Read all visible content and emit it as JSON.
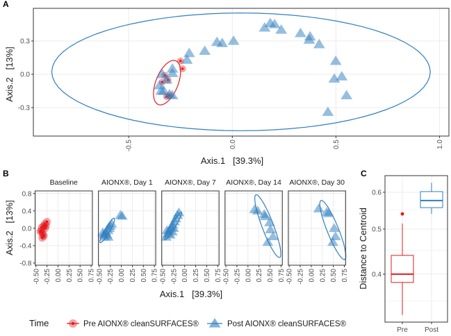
{
  "colors": {
    "pre": "#E41A1C",
    "post": "#2E7EBF",
    "grid": "#EBEBEB",
    "frame": "#333333"
  },
  "legend": {
    "title": "Time",
    "pre_label": "Pre AIONX® cleanSURFACES®",
    "post_label": "Post AIONX® cleanSURFACES®"
  },
  "chart_data": [
    {
      "panel": "A",
      "type": "scatter",
      "xlabel": "Axis.1   [39.3%]",
      "ylabel": "Axis.2   [13%]",
      "xlim": [
        -0.96,
        1.045
      ],
      "ylim": [
        -0.556,
        0.594
      ],
      "xticks": [
        -0.5,
        0.0,
        0.5,
        1.0
      ],
      "xtick_labels": [
        "-0.5",
        "0.0",
        "0.5",
        "1.0"
      ],
      "yticks": [
        -0.3,
        0.0,
        0.3
      ],
      "ytick_labels": [
        "-0.3",
        "0.0",
        "0.3"
      ],
      "series": [
        {
          "name": "Pre AIONX® cleanSURFACES®",
          "marker": "circle",
          "points": [
            [
              -0.25,
              0.12
            ],
            [
              -0.24,
              0.05
            ],
            [
              -0.326,
              -0.01
            ],
            [
              -0.31,
              -0.05
            ],
            [
              -0.338,
              -0.07
            ],
            [
              -0.303,
              -0.19
            ],
            [
              -0.317,
              -0.2
            ]
          ],
          "ellipse": {
            "center": [
              -0.315,
              -0.075
            ],
            "axis1": [
              0.035,
              0.2
            ],
            "axis2": [
              0.055,
              -0.01
            ]
          }
        },
        {
          "name": "Post AIONX® cleanSURFACES®",
          "marker": "triangle",
          "points": [
            [
              0.156,
              0.42
            ],
            [
              0.183,
              0.46
            ],
            [
              0.204,
              0.45
            ],
            [
              0.236,
              0.4
            ],
            [
              0.329,
              0.37
            ],
            [
              0.375,
              0.34
            ],
            [
              0.371,
              0.31
            ],
            [
              0.419,
              0.27
            ],
            [
              0.499,
              0.12
            ],
            [
              0.528,
              -0.02
            ],
            [
              0.492,
              -0.04
            ],
            [
              0.551,
              -0.19
            ],
            [
              0.461,
              -0.34
            ],
            [
              0.006,
              0.3
            ],
            [
              -0.049,
              0.28
            ],
            [
              -0.074,
              0.29
            ],
            [
              -0.133,
              0.21
            ],
            [
              -0.208,
              0.19
            ],
            [
              -0.219,
              0.13
            ],
            [
              -0.289,
              0.05
            ],
            [
              -0.289,
              0.01
            ],
            [
              -0.338,
              0.0
            ],
            [
              -0.317,
              -0.05
            ],
            [
              -0.351,
              -0.1
            ],
            [
              -0.331,
              -0.15
            ],
            [
              -0.303,
              -0.18
            ],
            [
              -0.289,
              -0.19
            ],
            [
              -0.344,
              -0.15
            ]
          ],
          "ellipse": {
            "center": [
              0.042,
              0.022
            ],
            "axis1": [
              0.913,
              0
            ],
            "axis2": [
              0,
              0.53
            ]
          }
        }
      ]
    },
    {
      "panel": "B",
      "type": "scatter",
      "xlabel": "Axis.1   [39.3%]",
      "ylabel": "Axis.2   [13%]",
      "xlim": [
        -0.52,
        0.78
      ],
      "ylim": [
        -0.85,
        0.86
      ],
      "xticks": [
        -0.5,
        -0.25,
        0,
        0.25,
        0.5,
        0.75
      ],
      "xtick_labels": [
        "-0.50",
        "-0.25",
        "0.00",
        "0.25",
        "0.50",
        "0.75"
      ],
      "yticks": [
        -0.8,
        -0.4,
        0,
        0.4,
        0.8
      ],
      "ytick_labels": [
        "-0.8",
        "-0.4",
        "0.0",
        "0.4",
        "0.8"
      ],
      "facets": [
        {
          "label": "Baseline",
          "group": "pre",
          "points": [
            [
              -0.3,
              0.1
            ],
            [
              -0.25,
              0.15
            ],
            [
              -0.33,
              0.05
            ],
            [
              -0.38,
              -0.05
            ],
            [
              -0.35,
              -0.1
            ],
            [
              -0.32,
              -0.18
            ],
            [
              -0.36,
              -0.22
            ],
            [
              -0.4,
              -0.08
            ],
            [
              -0.29,
              0.0
            ],
            [
              -0.34,
              -0.15
            ],
            [
              -0.27,
              0.06
            ],
            [
              -0.37,
              0.02
            ]
          ],
          "ellipse": null
        },
        {
          "label": "AIONX®, Day 1",
          "group": "post",
          "points": [
            [
              -0.4,
              -0.15
            ],
            [
              -0.35,
              -0.1
            ],
            [
              -0.3,
              -0.05
            ],
            [
              -0.27,
              0.0
            ],
            [
              -0.25,
              0.05
            ],
            [
              -0.22,
              0.1
            ],
            [
              -0.38,
              -0.2
            ],
            [
              -0.33,
              -0.15
            ],
            [
              -0.3,
              -0.2
            ],
            [
              -0.42,
              -0.1
            ],
            [
              -0.02,
              0.3
            ],
            [
              0.02,
              0.28
            ]
          ],
          "ellipse": {
            "center": [
              -0.32,
              -0.05
            ],
            "axis1": [
              0.16,
              0.28
            ],
            "axis2": [
              0.05,
              -0.03
            ]
          }
        },
        {
          "label": "AIONX®, Day 7",
          "group": "post",
          "points": [
            [
              -0.42,
              -0.2
            ],
            [
              -0.38,
              -0.12
            ],
            [
              -0.35,
              -0.05
            ],
            [
              -0.3,
              0.02
            ],
            [
              -0.27,
              0.08
            ],
            [
              -0.23,
              0.15
            ],
            [
              -0.2,
              0.22
            ],
            [
              -0.16,
              0.3
            ],
            [
              -0.13,
              0.36
            ],
            [
              -0.4,
              -0.05
            ],
            [
              -0.33,
              -0.15
            ],
            [
              -0.28,
              -0.08
            ],
            [
              -0.25,
              0.0
            ]
          ],
          "ellipse": {
            "center": [
              -0.26,
              0.05
            ],
            "axis1": [
              0.19,
              0.32
            ],
            "axis2": [
              0.04,
              -0.03
            ]
          }
        },
        {
          "label": "AIONX®, Day 14",
          "group": "post",
          "points": [
            [
              0.15,
              0.43
            ],
            [
              0.22,
              0.4
            ],
            [
              0.37,
              0.32
            ],
            [
              0.39,
              0.27
            ],
            [
              0.49,
              0.13
            ],
            [
              0.51,
              -0.03
            ],
            [
              0.57,
              -0.19
            ],
            [
              0.45,
              -0.32
            ]
          ],
          "ellipse": {
            "center": [
              0.45,
              0.05
            ],
            "axis1": [
              -0.27,
              0.72
            ],
            "axis2": [
              0.12,
              0.05
            ]
          }
        },
        {
          "label": "AIONX®, Day 30",
          "group": "post",
          "points": [
            [
              0.17,
              0.45
            ],
            [
              0.35,
              0.37
            ],
            [
              0.39,
              0.34
            ],
            [
              0.52,
              0.0
            ],
            [
              0.55,
              -0.19
            ],
            [
              0.49,
              -0.32
            ]
          ],
          "ellipse": {
            "center": [
              0.49,
              -0.04
            ],
            "axis1": [
              -0.27,
              0.68
            ],
            "axis2": [
              0.12,
              0.05
            ]
          }
        }
      ]
    },
    {
      "panel": "C",
      "type": "box",
      "ylabel": "Distance to Centroid",
      "yscale": "log",
      "ylim": [
        0.32,
        0.645
      ],
      "yticks": [
        0.4,
        0.5,
        0.6
      ],
      "ytick_labels": [
        "0.4",
        "0.5",
        "0.6"
      ],
      "categories": [
        "Pre",
        "Post"
      ],
      "boxes": [
        {
          "name": "Pre",
          "group": "pre",
          "whisker_low": 0.327,
          "q1": 0.384,
          "median": 0.4,
          "q3": 0.439,
          "whisker_high": 0.514,
          "outliers": [
            0.539
          ]
        },
        {
          "name": "Post",
          "group": "post",
          "whisker_low": 0.539,
          "q1": 0.556,
          "median": 0.576,
          "q3": 0.602,
          "whisker_high": 0.629,
          "outliers": []
        }
      ]
    }
  ],
  "panel_labels": [
    "A",
    "B",
    "C"
  ]
}
